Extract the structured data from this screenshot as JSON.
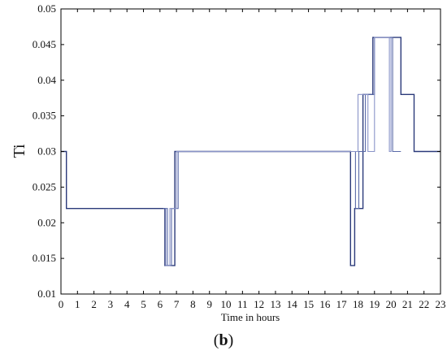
{
  "panel": {
    "open": "(",
    "letter": "b",
    "close": ")"
  },
  "chart_data": {
    "type": "line",
    "xlabel": "Time in hours",
    "ylabel": "Ti",
    "xlim": [
      0,
      23
    ],
    "ylim": [
      0.01,
      0.05
    ],
    "xticks": [
      "0",
      "1",
      "2",
      "3",
      "4",
      "5",
      "6",
      "7",
      "8",
      "9",
      "10",
      "11",
      "12",
      "13",
      "14",
      "15",
      "16",
      "17",
      "18",
      "19",
      "20",
      "21",
      "22",
      "23"
    ],
    "yticks": [
      "0.01",
      "0.015",
      "0.02",
      "0.025",
      "0.03",
      "0.035",
      "0.04",
      "0.045",
      "0.05"
    ],
    "grid": false,
    "series": [
      {
        "color": "#2b3a7a",
        "x": [
          0,
          0.33,
          0.33,
          6.3,
          6.3,
          6.55,
          6.55,
          6.9,
          6.9,
          17.55,
          17.55,
          17.8,
          17.8,
          18.3,
          18.3,
          18.9,
          18.9,
          20.6,
          20.6,
          21.4,
          21.4,
          23
        ],
        "y": [
          0.03,
          0.03,
          0.022,
          0.022,
          0.014,
          0.014,
          0.014,
          0.014,
          0.03,
          0.03,
          0.014,
          0.014,
          0.022,
          0.022,
          0.038,
          0.038,
          0.046,
          0.046,
          0.038,
          0.038,
          0.03,
          0.03
        ]
      },
      {
        "color": "#5a6aa8",
        "x": [
          6.2,
          6.45,
          6.45,
          6.7,
          6.7,
          7.1,
          7.1,
          17.85,
          17.85,
          18.05,
          18.05,
          18.45,
          18.45,
          19.0,
          19.0,
          20.1,
          20.1,
          20.6
        ],
        "y": [
          0.022,
          0.022,
          0.014,
          0.014,
          0.022,
          0.022,
          0.03,
          0.03,
          0.022,
          0.022,
          0.03,
          0.03,
          0.038,
          0.038,
          0.046,
          0.046,
          0.03,
          0.03
        ]
      },
      {
        "color": "#8a94c8",
        "x": [
          6.35,
          6.35,
          6.6,
          6.6,
          7.0,
          7.0,
          18.0,
          18.0,
          18.6,
          18.6,
          19.0,
          19.0,
          19.9,
          19.9,
          20.0,
          20.0
        ],
        "y": [
          0.022,
          0.014,
          0.014,
          0.022,
          0.022,
          0.03,
          0.03,
          0.038,
          0.038,
          0.03,
          0.03,
          0.046,
          0.046,
          0.03,
          0.03,
          0.046
        ]
      }
    ]
  }
}
